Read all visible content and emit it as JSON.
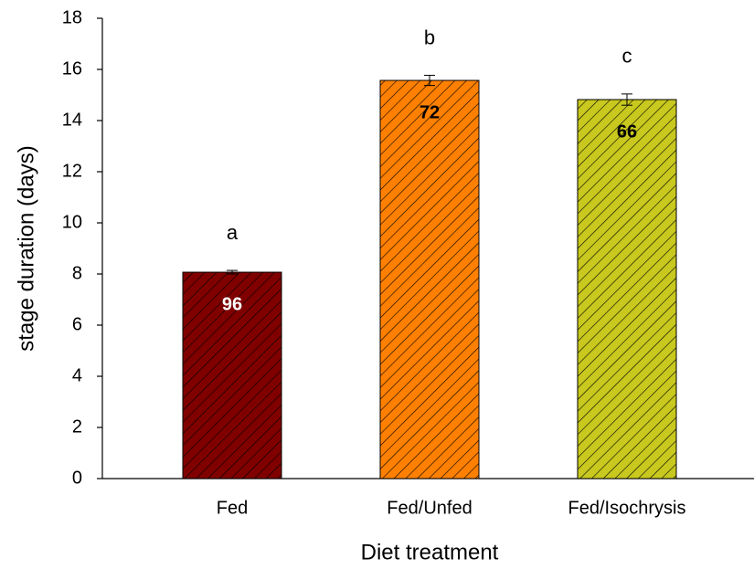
{
  "chart_data": {
    "type": "bar",
    "xlabel": "Diet treatment",
    "ylabel": "stage duration (days)",
    "categories": [
      "Fed",
      "Fed/Unfed",
      "Fed/Isochrysis"
    ],
    "values": [
      8.07,
      15.57,
      14.82
    ],
    "errors": [
      0.07,
      0.2,
      0.22
    ],
    "colors": [
      "#800000",
      "#ff8000",
      "#c8c81e"
    ],
    "hatch": true,
    "group_letters": [
      "a",
      "b",
      "c"
    ],
    "sample_sizes": [
      96,
      72,
      66
    ],
    "sample_size_colors": [
      "#ffffff",
      "#000000",
      "#000000"
    ],
    "ylim": [
      0,
      18
    ],
    "yticks": [
      0,
      2,
      4,
      6,
      8,
      10,
      12,
      14,
      16,
      18
    ]
  }
}
